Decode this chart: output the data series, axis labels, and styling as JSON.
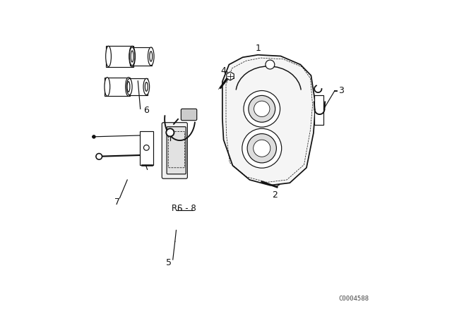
{
  "bg_color": "#ffffff",
  "line_color": "#111111",
  "fig_width": 6.4,
  "fig_height": 4.48,
  "dpi": 100,
  "watermark": "C0004588"
}
